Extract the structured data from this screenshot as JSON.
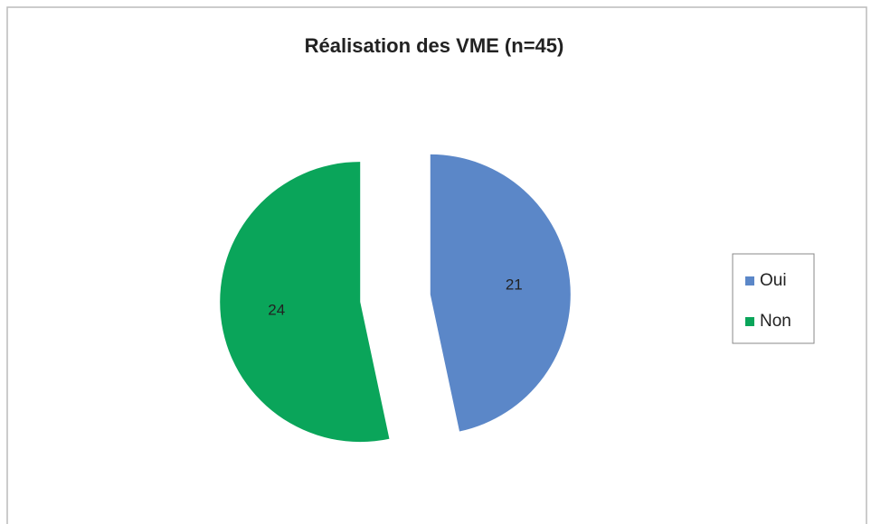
{
  "chart_data": {
    "type": "pie",
    "title": "Réalisation des VME (n=45)",
    "categories": [
      "Oui",
      "Non"
    ],
    "values": [
      21,
      24
    ],
    "colors": [
      "#5b87c8",
      "#0aa55a"
    ],
    "legend": "right"
  }
}
